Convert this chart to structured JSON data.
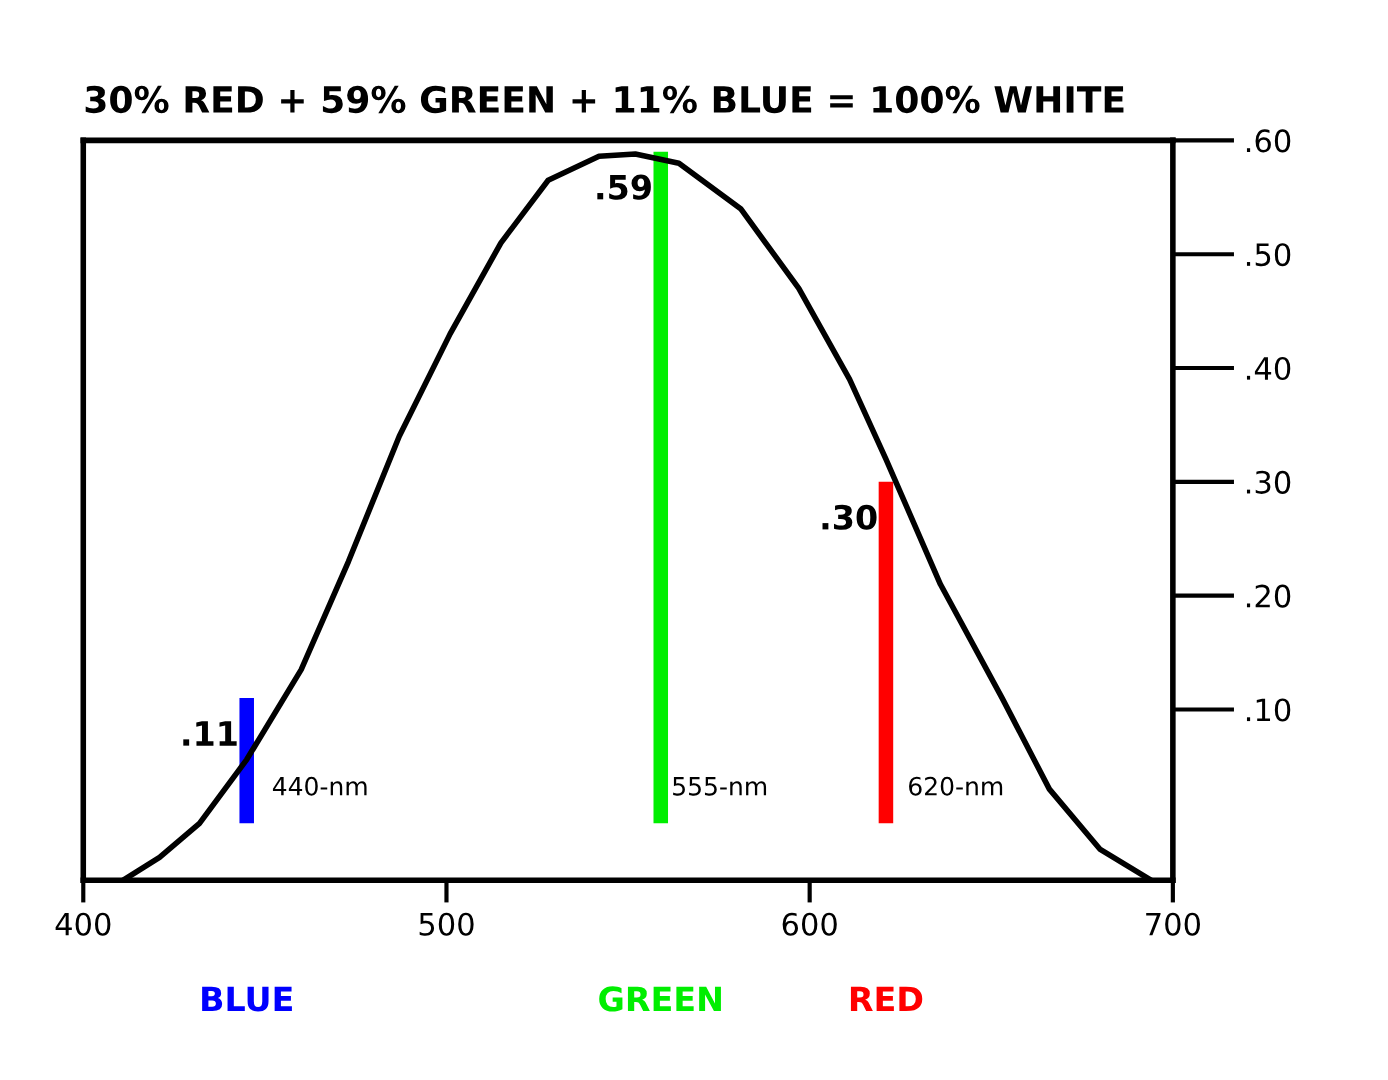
{
  "chart_data": {
    "type": "line",
    "title": "30% RED + 59% GREEN + 11% BLUE = 100% WHITE",
    "series": [
      {
        "color": "#000000",
        "x": [
          411,
          421,
          432,
          445,
          460,
          473,
          487,
          501,
          515,
          528,
          542,
          552,
          564,
          581,
          597,
          611,
          621,
          636,
          653,
          666,
          680,
          694
        ],
        "values": [
          -0.05,
          -0.03,
          0.0,
          0.056,
          0.135,
          0.23,
          0.34,
          0.43,
          0.51,
          0.565,
          0.586,
          0.588,
          0.58,
          0.54,
          0.47,
          0.39,
          0.32,
          0.21,
          0.11,
          0.03,
          -0.023,
          -0.05
        ]
      },
      {
        "type": "bar",
        "name": "BLUE",
        "color": "#0000ff",
        "x": [
          445
        ],
        "values": [
          0.11
        ],
        "value_labels": [
          ".11"
        ]
      },
      {
        "type": "bar",
        "name": "GREEN",
        "color": "#00ee00",
        "x": [
          559
        ],
        "values": [
          0.59
        ],
        "value_labels": [
          ".59"
        ]
      },
      {
        "type": "bar",
        "name": "RED",
        "color": "#ff0000",
        "x": [
          621
        ],
        "values": [
          0.3
        ],
        "value_labels": [
          ".30"
        ]
      }
    ],
    "annotations": [
      {
        "text": "440-nm",
        "x": 445,
        "y": 0.02
      },
      {
        "text": "555-nm",
        "x": 555,
        "y": 0.02
      },
      {
        "text": "620-nm",
        "x": 620,
        "y": 0.02
      }
    ],
    "xlim": [
      400,
      700
    ],
    "xticks": [
      400,
      500,
      600,
      700
    ],
    "ylim": [
      -0.05,
      0.6
    ],
    "yticks": [
      {
        "value": 0.1,
        "label": ".10"
      },
      {
        "value": 0.2,
        "label": ".20"
      },
      {
        "value": 0.3,
        "label": ".30"
      },
      {
        "value": 0.4,
        "label": ".40"
      },
      {
        "value": 0.5,
        "label": ".50"
      },
      {
        "value": 0.6,
        "label": ".60"
      }
    ],
    "legend": false,
    "grid": false
  }
}
